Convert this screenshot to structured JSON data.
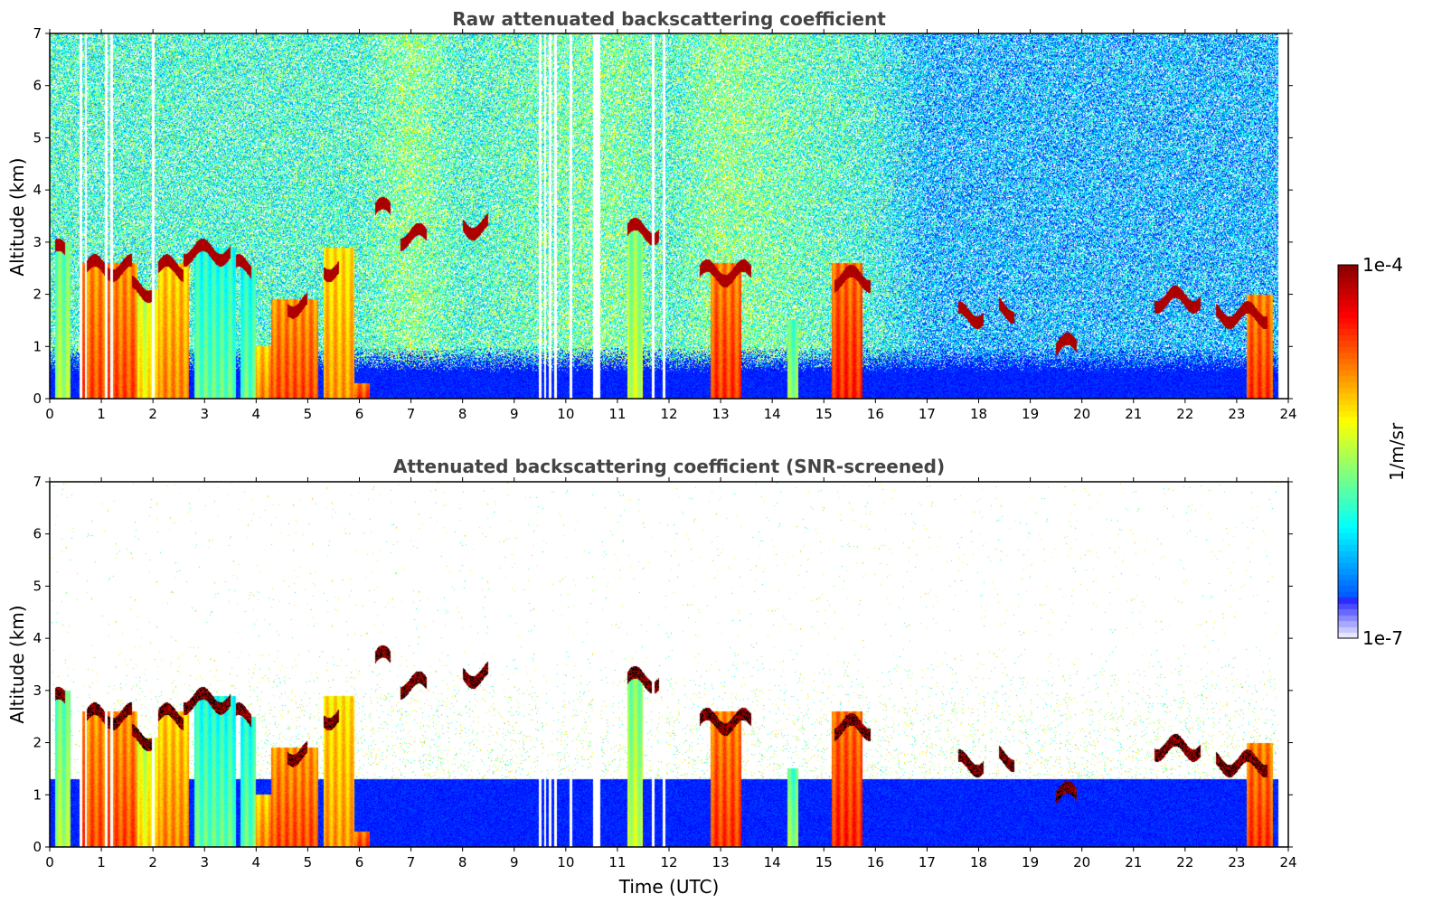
{
  "chart_data": [
    {
      "type": "heatmap",
      "title": "Raw attenuated backscattering coefficient",
      "xlabel": "",
      "ylabel": "Altitude (km)",
      "xlim": [
        0,
        24
      ],
      "ylim": [
        0,
        7
      ],
      "xticks": [
        "0",
        "1",
        "2",
        "3",
        "4",
        "5",
        "6",
        "7",
        "8",
        "9",
        "10",
        "11",
        "12",
        "13",
        "14",
        "15",
        "16",
        "17",
        "18",
        "19",
        "20",
        "21",
        "22",
        "23",
        "24"
      ],
      "yticks": [
        "0",
        "1",
        "2",
        "3",
        "4",
        "5",
        "6",
        "7"
      ],
      "background_signal_top_km": 0.5,
      "cloud_layers": [
        {
          "t0": 0.1,
          "t1": 0.3,
          "alt": 2.8
        },
        {
          "t0": 0.7,
          "t1": 1.6,
          "alt": 2.5
        },
        {
          "t0": 1.6,
          "t1": 2.0,
          "alt": 2.1
        },
        {
          "t0": 2.1,
          "t1": 2.6,
          "alt": 2.5
        },
        {
          "t0": 2.6,
          "t1": 3.5,
          "alt": 2.8
        },
        {
          "t0": 3.6,
          "t1": 3.9,
          "alt": 2.5
        },
        {
          "t0": 4.6,
          "t1": 5.0,
          "alt": 1.8
        },
        {
          "t0": 5.3,
          "t1": 5.6,
          "alt": 2.5
        },
        {
          "t0": 6.3,
          "t1": 6.6,
          "alt": 3.6
        },
        {
          "t0": 6.8,
          "t1": 7.3,
          "alt": 3.1
        },
        {
          "t0": 8.0,
          "t1": 8.5,
          "alt": 3.3
        },
        {
          "t0": 11.2,
          "t1": 11.8,
          "alt": 3.2
        },
        {
          "t0": 12.6,
          "t1": 13.6,
          "alt": 2.4
        },
        {
          "t0": 15.2,
          "t1": 15.9,
          "alt": 2.3
        },
        {
          "t0": 17.6,
          "t1": 18.1,
          "alt": 1.6
        },
        {
          "t0": 18.4,
          "t1": 18.7,
          "alt": 1.7
        },
        {
          "t0": 19.5,
          "t1": 19.9,
          "alt": 1.0
        },
        {
          "t0": 21.4,
          "t1": 22.3,
          "alt": 1.9
        },
        {
          "t0": 22.6,
          "t1": 23.6,
          "alt": 1.6
        }
      ],
      "low_column_features": [
        {
          "t0": 0.1,
          "t1": 0.4,
          "top": 3.0,
          "level": 0.52
        },
        {
          "t0": 0.6,
          "t1": 1.7,
          "top": 2.6,
          "level": 0.78
        },
        {
          "t0": 1.7,
          "t1": 2.1,
          "top": 2.1,
          "level": 0.62
        },
        {
          "t0": 2.1,
          "t1": 2.7,
          "top": 2.6,
          "level": 0.72
        },
        {
          "t0": 2.8,
          "t1": 3.6,
          "top": 2.9,
          "level": 0.45
        },
        {
          "t0": 3.7,
          "t1": 4.0,
          "top": 2.5,
          "level": 0.45
        },
        {
          "t0": 4.0,
          "t1": 4.3,
          "top": 1.0,
          "level": 0.72
        },
        {
          "t0": 4.3,
          "t1": 5.2,
          "top": 1.9,
          "level": 0.78
        },
        {
          "t0": 5.3,
          "t1": 5.9,
          "top": 2.9,
          "level": 0.7
        },
        {
          "t0": 5.9,
          "t1": 6.2,
          "top": 0.3,
          "level": 0.8
        },
        {
          "t0": 11.2,
          "t1": 11.5,
          "top": 3.3,
          "level": 0.55
        },
        {
          "t0": 12.8,
          "t1": 13.4,
          "top": 2.6,
          "level": 0.8
        },
        {
          "t0": 14.3,
          "t1": 14.5,
          "top": 1.5,
          "level": 0.5
        },
        {
          "t0": 15.15,
          "t1": 15.75,
          "top": 2.6,
          "level": 0.82
        },
        {
          "t0": 23.2,
          "t1": 23.7,
          "top": 2.0,
          "level": 0.8
        }
      ],
      "noise_level_by_time": [
        {
          "t": 0,
          "level": 0.42
        },
        {
          "t": 6,
          "level": 0.42
        },
        {
          "t": 7,
          "level": 0.5
        },
        {
          "t": 8,
          "level": 0.42
        },
        {
          "t": 11,
          "level": 0.48
        },
        {
          "t": 12,
          "level": 0.42
        },
        {
          "t": 13,
          "level": 0.5
        },
        {
          "t": 16,
          "level": 0.4
        },
        {
          "t": 17,
          "level": 0.3
        },
        {
          "t": 24,
          "level": 0.3
        }
      ],
      "data_gaps_hours": [
        0.6,
        0.7,
        1.1,
        1.2,
        2.0,
        9.5,
        9.6,
        9.7,
        9.8,
        10.1,
        10.55,
        10.6,
        10.65,
        11.7,
        11.9
      ]
    },
    {
      "type": "heatmap",
      "title": "Attenuated backscattering coefficient (SNR-screened)",
      "xlabel": "Time (UTC)",
      "ylabel": "Altitude (km)",
      "xlim": [
        0,
        24
      ],
      "ylim": [
        0,
        7
      ],
      "xticks": [
        "0",
        "1",
        "2",
        "3",
        "4",
        "5",
        "6",
        "7",
        "8",
        "9",
        "10",
        "11",
        "12",
        "13",
        "14",
        "15",
        "16",
        "17",
        "18",
        "19",
        "20",
        "21",
        "22",
        "23",
        "24"
      ],
      "yticks": [
        "0",
        "1",
        "2",
        "3",
        "4",
        "5",
        "6",
        "7"
      ],
      "screened_signal_top_km": 1.6,
      "note_cloud_layers": "same features as raw panel, noise removed above signal layer"
    }
  ],
  "colorbar": {
    "label": "1/m/sr",
    "max_label": "1e-4",
    "min_label": "1e-7",
    "scale": "log",
    "range": [
      1e-07,
      0.0001
    ],
    "colormap": "jet"
  }
}
